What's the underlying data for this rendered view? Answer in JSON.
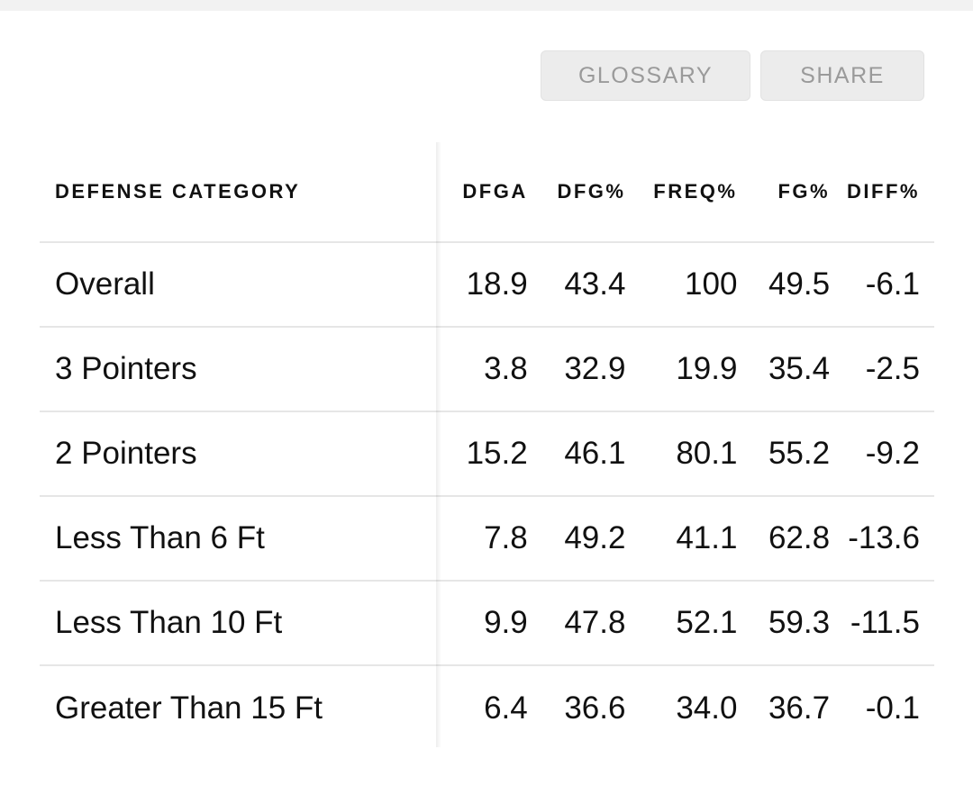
{
  "actions": {
    "glossary_label": "GLOSSARY",
    "share_label": "SHARE"
  },
  "table": {
    "columns": [
      "DEFENSE CATEGORY",
      "DFGA",
      "DFG%",
      "FREQ%",
      "FG%",
      "DIFF%"
    ],
    "rows": [
      {
        "category": "Overall",
        "dfga": "18.9",
        "dfg_pct": "43.4",
        "freq_pct": "100",
        "fg_pct": "49.5",
        "diff_pct": "-6.1"
      },
      {
        "category": "3 Pointers",
        "dfga": "3.8",
        "dfg_pct": "32.9",
        "freq_pct": "19.9",
        "fg_pct": "35.4",
        "diff_pct": "-2.5"
      },
      {
        "category": "2 Pointers",
        "dfga": "15.2",
        "dfg_pct": "46.1",
        "freq_pct": "80.1",
        "fg_pct": "55.2",
        "diff_pct": "-9.2"
      },
      {
        "category": "Less Than 6 Ft",
        "dfga": "7.8",
        "dfg_pct": "49.2",
        "freq_pct": "41.1",
        "fg_pct": "62.8",
        "diff_pct": "-13.6"
      },
      {
        "category": "Less Than 10 Ft",
        "dfga": "9.9",
        "dfg_pct": "47.8",
        "freq_pct": "52.1",
        "fg_pct": "59.3",
        "diff_pct": "-11.5"
      },
      {
        "category": "Greater Than 15 Ft",
        "dfga": "6.4",
        "dfg_pct": "36.6",
        "freq_pct": "34.0",
        "fg_pct": "36.7",
        "diff_pct": "-0.1"
      }
    ]
  }
}
